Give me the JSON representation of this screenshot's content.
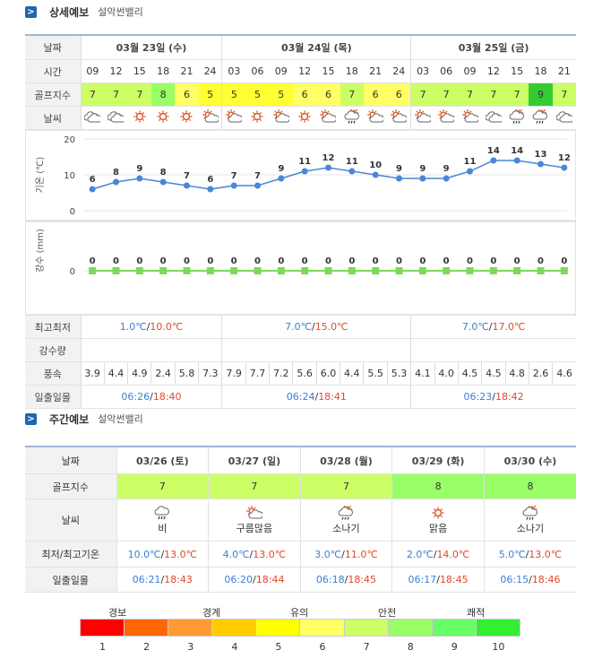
{
  "detail": {
    "icon": ">",
    "title": "상세예보",
    "subtitle": "설악썬밸리",
    "labels": {
      "date": "날짜",
      "time": "시간",
      "golf": "골프지수",
      "weather": "날씨",
      "temp_axis": "기온 (℃)",
      "rain_axis": "강수 (mm)",
      "minmax": "최고최저",
      "rain": "강수량",
      "wind": "풍속",
      "sun": "일출일몰"
    },
    "days": [
      {
        "date": "03월 23일 (수)",
        "span": 6,
        "min": "1.0℃",
        "max": "10.0℃",
        "sunrise": "06:26",
        "sunset": "18:40"
      },
      {
        "date": "03월 24일 (목)",
        "span": 8,
        "min": "7.0℃",
        "max": "15.0℃",
        "sunrise": "06:24",
        "sunset": "18:41"
      },
      {
        "date": "03월 25일 (금)",
        "span": 7,
        "min": "7.0℃",
        "max": "17.0℃",
        "sunrise": "06:23",
        "sunset": "18:42"
      }
    ],
    "times": [
      "09",
      "12",
      "15",
      "18",
      "21",
      "24",
      "03",
      "06",
      "09",
      "12",
      "15",
      "18",
      "21",
      "24",
      "03",
      "06",
      "09",
      "12",
      "15",
      "18",
      "21"
    ],
    "golf": [
      7,
      7,
      7,
      8,
      6,
      5,
      5,
      5,
      5,
      6,
      6,
      7,
      6,
      6,
      7,
      7,
      7,
      7,
      7,
      9,
      7
    ],
    "weather": [
      "cloudy-icon",
      "cloudy-icon",
      "sunny-icon",
      "sunny-icon",
      "sunny-icon",
      "partly-cloudy-icon",
      "partly-cloudy-icon",
      "sunny-icon",
      "partly-cloudy-icon",
      "sunny-icon",
      "partly-cloudy-icon",
      "shower-icon",
      "partly-cloudy-icon",
      "partly-cloudy-icon",
      "partly-cloudy-icon",
      "partly-cloudy-icon",
      "partly-cloudy-icon",
      "cloudy-icon",
      "shower-icon",
      "shower-icon",
      "cloudy-icon"
    ],
    "wind": [
      "3.9",
      "4.4",
      "4.9",
      "2.4",
      "5.8",
      "7.3",
      "7.9",
      "7.7",
      "7.2",
      "5.6",
      "6.0",
      "4.4",
      "5.5",
      "5.3",
      "4.1",
      "4.0",
      "4.5",
      "4.5",
      "4.8",
      "2.6",
      "4.6"
    ]
  },
  "chart_data": [
    {
      "type": "line",
      "ylabel": "기온 (℃)",
      "ylim": [
        0,
        20
      ],
      "yticks": [
        0,
        10,
        20
      ],
      "x": [
        "09",
        "12",
        "15",
        "18",
        "21",
        "24",
        "03",
        "06",
        "09",
        "12",
        "15",
        "18",
        "21",
        "24",
        "03",
        "06",
        "09",
        "12",
        "15",
        "18",
        "21"
      ],
      "values": [
        6,
        8,
        9,
        8,
        7,
        6,
        7,
        7,
        9,
        11,
        12,
        11,
        10,
        9,
        9,
        9,
        11,
        14,
        14,
        13,
        12
      ],
      "color": "#4a86d8"
    },
    {
      "type": "line",
      "ylabel": "강수 (mm)",
      "yticks": [
        0
      ],
      "x": [
        "09",
        "12",
        "15",
        "18",
        "21",
        "24",
        "03",
        "06",
        "09",
        "12",
        "15",
        "18",
        "21",
        "24",
        "03",
        "06",
        "09",
        "12",
        "15",
        "18",
        "21"
      ],
      "values": [
        0,
        0,
        0,
        0,
        0,
        0,
        0,
        0,
        0,
        0,
        0,
        0,
        0,
        0,
        0,
        0,
        0,
        0,
        0,
        0,
        0
      ],
      "color": "#7ed957"
    }
  ],
  "weekly": {
    "icon": ">",
    "title": "주간예보",
    "subtitle": "설악썬밸리",
    "labels": {
      "date": "날짜",
      "golf": "골프지수",
      "weather": "날씨",
      "minmax": "최저/최고기온",
      "sun": "일출일몰"
    },
    "days": [
      {
        "date": "03/26 (토)",
        "golf": "7",
        "weather": "비",
        "icon": "rain-icon",
        "min": "10.0℃",
        "max": "13.0℃",
        "sunrise": "06:21",
        "sunset": "18:43"
      },
      {
        "date": "03/27 (일)",
        "golf": "7",
        "weather": "구름많음",
        "icon": "partly-cloudy-icon",
        "min": "4.0℃",
        "max": "13.0℃",
        "sunrise": "06:20",
        "sunset": "18:44"
      },
      {
        "date": "03/28 (월)",
        "golf": "7",
        "weather": "소나기",
        "icon": "shower-icon",
        "min": "3.0℃",
        "max": "11.0℃",
        "sunrise": "06:18",
        "sunset": "18:45"
      },
      {
        "date": "03/29 (화)",
        "golf": "8",
        "weather": "맑음",
        "icon": "sunny-icon",
        "min": "2.0℃",
        "max": "14.0℃",
        "sunrise": "06:17",
        "sunset": "18:45"
      },
      {
        "date": "03/30 (수)",
        "golf": "8",
        "weather": "소나기",
        "icon": "shower-icon",
        "min": "5.0℃",
        "max": "13.0℃",
        "sunrise": "06:15",
        "sunset": "18:46"
      }
    ]
  },
  "legend": {
    "labels": [
      "경보",
      "경계",
      "유의",
      "안전",
      "쾌적"
    ],
    "colors": [
      "#ff0000",
      "#ff6600",
      "#ff9933",
      "#ffcc00",
      "#ffff00",
      "#ffff66",
      "#ccff66",
      "#99ff66",
      "#66ff66",
      "#33ee33"
    ],
    "numbers": [
      "1",
      "2",
      "3",
      "4",
      "5",
      "6",
      "7",
      "8",
      "9",
      "10"
    ]
  }
}
